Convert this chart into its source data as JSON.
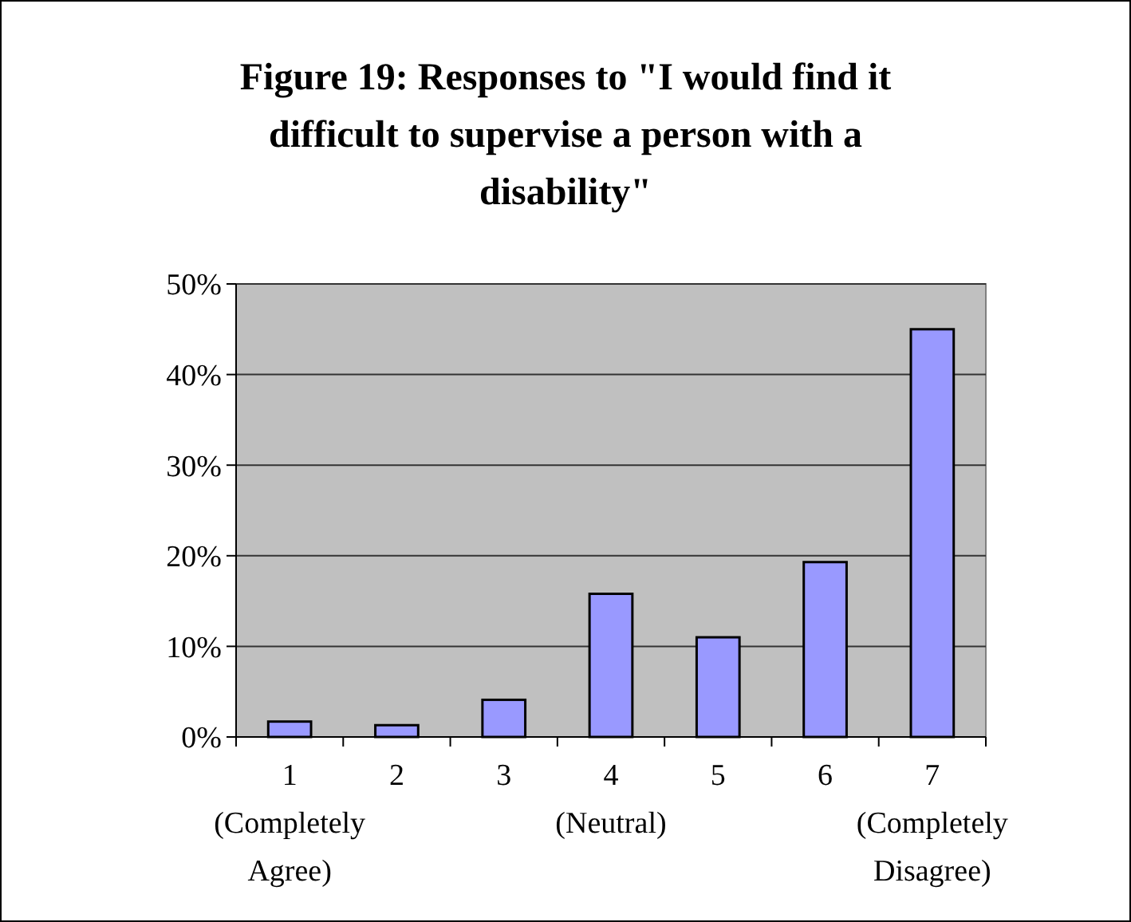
{
  "chart_data": {
    "type": "bar",
    "title": "Figure 19: Responses to \"I would find it difficult to supervise a person with a disability\"",
    "categories": [
      "1 (Completely Agree)",
      "2",
      "3",
      "4 (Neutral)",
      "5",
      "6",
      "7 (Completely Disagree)"
    ],
    "values": [
      1.7,
      1.3,
      4.1,
      15.8,
      11.0,
      19.3,
      45.0
    ],
    "color": "#9999ff",
    "ylim": [
      0,
      50
    ],
    "yticks": [
      {
        "value": 0,
        "label": "0%"
      },
      {
        "value": 10,
        "label": "10%"
      },
      {
        "value": 20,
        "label": "20%"
      },
      {
        "value": 30,
        "label": "30%"
      },
      {
        "value": 40,
        "label": "40%"
      },
      {
        "value": 50,
        "label": "50%"
      }
    ],
    "grid": "y"
  }
}
